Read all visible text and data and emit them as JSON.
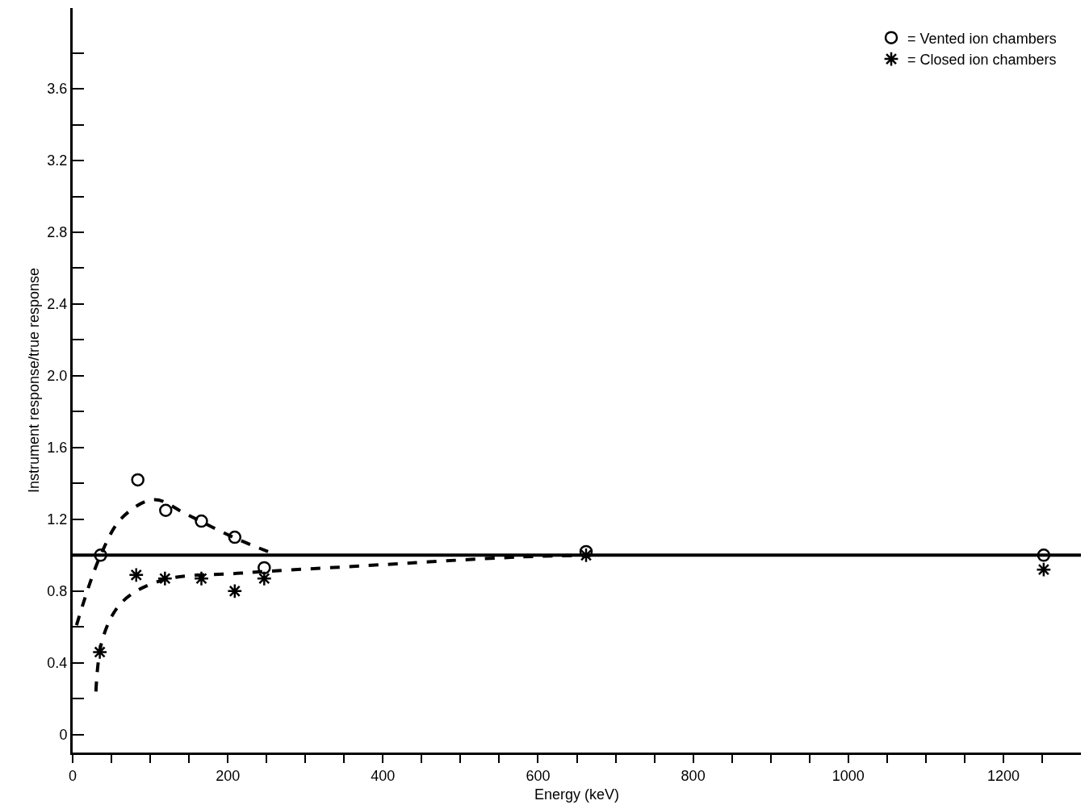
{
  "chart_data": {
    "type": "scatter",
    "xlabel": "Energy (keV)",
    "ylabel": "Instrument response/true response",
    "xlim": [
      0,
      1300
    ],
    "ylim": [
      -0.1,
      4.05
    ],
    "xticks": [
      0,
      {
        "value": 50,
        "label": null
      },
      {
        "value": 100,
        "label": null
      },
      {
        "value": 150,
        "label": null
      },
      200,
      {
        "value": 250,
        "label": null
      },
      {
        "value": 300,
        "label": null
      },
      {
        "value": 350,
        "label": null
      },
      400,
      {
        "value": 450,
        "label": null
      },
      {
        "value": 500,
        "label": null
      },
      {
        "value": 550,
        "label": null
      },
      600,
      {
        "value": 650,
        "label": null
      },
      {
        "value": 700,
        "label": null
      },
      {
        "value": 750,
        "label": null
      },
      800,
      {
        "value": 850,
        "label": null
      },
      {
        "value": 900,
        "label": null
      },
      {
        "value": 950,
        "label": null
      },
      1000,
      {
        "value": 1050,
        "label": null
      },
      {
        "value": 1100,
        "label": null
      },
      {
        "value": 1150,
        "label": null
      },
      1200,
      {
        "value": 1250,
        "label": null
      }
    ],
    "yticks": [
      0,
      {
        "value": 0.2,
        "label": null
      },
      0.4,
      {
        "value": 0.6,
        "label": null
      },
      0.8,
      {
        "value": 1.0,
        "label": null
      },
      1.2,
      {
        "value": 1.4,
        "label": null
      },
      1.6,
      {
        "value": 1.8,
        "label": null
      },
      {
        "value": 2,
        "label": "2.0"
      },
      {
        "value": 2.2,
        "label": null
      },
      2.4,
      {
        "value": 2.6,
        "label": null
      },
      2.8,
      {
        "value": 3.0,
        "label": null
      },
      3.2,
      {
        "value": 3.4,
        "label": null
      },
      3.6,
      {
        "value": 3.8,
        "label": null
      }
    ],
    "grid": false,
    "legend": "top right",
    "ref_lines": [
      {
        "axis": "y",
        "value": 1.0,
        "color": "#000000",
        "line_style": "solid"
      }
    ],
    "series": [
      {
        "name": "= Vented ion chambers",
        "marker": "circle",
        "color": "#000000",
        "x": [
          36,
          84,
          120,
          166,
          209,
          247,
          662,
          1252
        ],
        "values": [
          1.0,
          1.42,
          1.25,
          1.19,
          1.1,
          0.93,
          1.02,
          1.0
        ]
      },
      {
        "name": "= Closed ion chambers",
        "marker": "cross",
        "color": "#000000",
        "x": [
          35,
          82,
          119,
          166,
          209,
          247,
          662,
          1252
        ],
        "values": [
          0.46,
          0.89,
          0.87,
          0.87,
          0.8,
          0.87,
          1.0,
          0.92
        ]
      },
      {
        "type": "line",
        "line_style": "dashed",
        "color": "#000000",
        "x": [
          5,
          36,
          64,
          105,
          146,
          207,
          258
        ],
        "values": [
          0.61,
          1.0,
          1.21,
          1.31,
          1.23,
          1.1,
          1.01
        ]
      },
      {
        "type": "line",
        "line_style": "dashed",
        "color": "#000000",
        "x": [
          30,
          39,
          64,
          115,
          217,
          371,
          576,
          669
        ],
        "values": [
          0.24,
          0.54,
          0.74,
          0.86,
          0.9,
          0.94,
          0.99,
          1.0
        ]
      }
    ]
  }
}
